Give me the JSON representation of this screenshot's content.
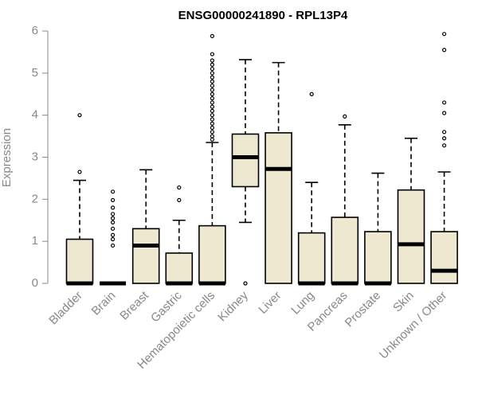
{
  "chart_data": {
    "type": "boxplot",
    "title": "ENSG00000241890 - RPL13P4",
    "ylabel": "Expression",
    "xlabel": "",
    "ylim": [
      0,
      6
    ],
    "yticks": [
      0,
      1,
      2,
      3,
      4,
      5,
      6
    ],
    "grid": false,
    "colors": {
      "box_fill": "#efe8d0",
      "stroke": "#000000",
      "axis": "#888888"
    },
    "categories": [
      "Bladder",
      "Brain",
      "Breast",
      "Gastric",
      "Hematopoietic cells",
      "Kidney",
      "Liver",
      "Lung",
      "Pancreas",
      "Prostate",
      "Skin",
      "Unknown / Other"
    ],
    "boxes": [
      {
        "category": "Bladder",
        "whisker_low": 0,
        "q1": 0,
        "median": 0,
        "q3": 1.05,
        "whisker_high": 2.45,
        "outliers": [
          2.65,
          4.0
        ]
      },
      {
        "category": "Brain",
        "whisker_low": 0,
        "q1": 0,
        "median": 0,
        "q3": 0,
        "whisker_high": 0,
        "outliers": [
          0.9,
          1.05,
          1.15,
          1.3,
          1.45,
          1.55,
          1.65,
          1.8,
          1.98,
          2.18
        ]
      },
      {
        "category": "Breast",
        "whisker_low": 0,
        "q1": 0,
        "median": 0.9,
        "q3": 1.3,
        "whisker_high": 2.7,
        "outliers": []
      },
      {
        "category": "Gastric",
        "whisker_low": 0,
        "q1": 0,
        "median": 0,
        "q3": 0.72,
        "whisker_high": 1.5,
        "outliers": [
          1.98,
          2.28
        ]
      },
      {
        "category": "Hematopoietic cells",
        "whisker_low": 0,
        "q1": 0,
        "median": 0,
        "q3": 1.37,
        "whisker_high": 3.35,
        "outliers": [
          3.42,
          3.5,
          3.6,
          3.7,
          3.8,
          3.9,
          4.0,
          4.1,
          4.2,
          4.3,
          4.4,
          4.5,
          4.6,
          4.7,
          4.8,
          4.9,
          5.0,
          5.1,
          5.2,
          5.3,
          5.45,
          5.88
        ]
      },
      {
        "category": "Kidney",
        "whisker_low": 1.45,
        "q1": 2.3,
        "median": 3.0,
        "q3": 3.55,
        "whisker_high": 5.32,
        "outliers": [
          0
        ]
      },
      {
        "category": "Liver",
        "whisker_low": 0,
        "q1": 0,
        "median": 2.72,
        "q3": 3.58,
        "whisker_high": 5.25,
        "outliers": []
      },
      {
        "category": "Lung",
        "whisker_low": 0,
        "q1": 0,
        "median": 0,
        "q3": 1.2,
        "whisker_high": 2.4,
        "outliers": [
          4.5
        ]
      },
      {
        "category": "Pancreas",
        "whisker_low": 0,
        "q1": 0,
        "median": 0,
        "q3": 1.57,
        "whisker_high": 3.77,
        "outliers": [
          3.97
        ]
      },
      {
        "category": "Prostate",
        "whisker_low": 0,
        "q1": 0,
        "median": 0,
        "q3": 1.23,
        "whisker_high": 2.62,
        "outliers": []
      },
      {
        "category": "Skin",
        "whisker_low": 0,
        "q1": 0,
        "median": 0.93,
        "q3": 2.22,
        "whisker_high": 3.45,
        "outliers": []
      },
      {
        "category": "Unknown / Other",
        "whisker_low": 0,
        "q1": 0,
        "median": 0.3,
        "q3": 1.23,
        "whisker_high": 2.65,
        "outliers": [
          3.28,
          3.45,
          3.6,
          4.05,
          4.3,
          5.55,
          5.93
        ]
      }
    ]
  }
}
